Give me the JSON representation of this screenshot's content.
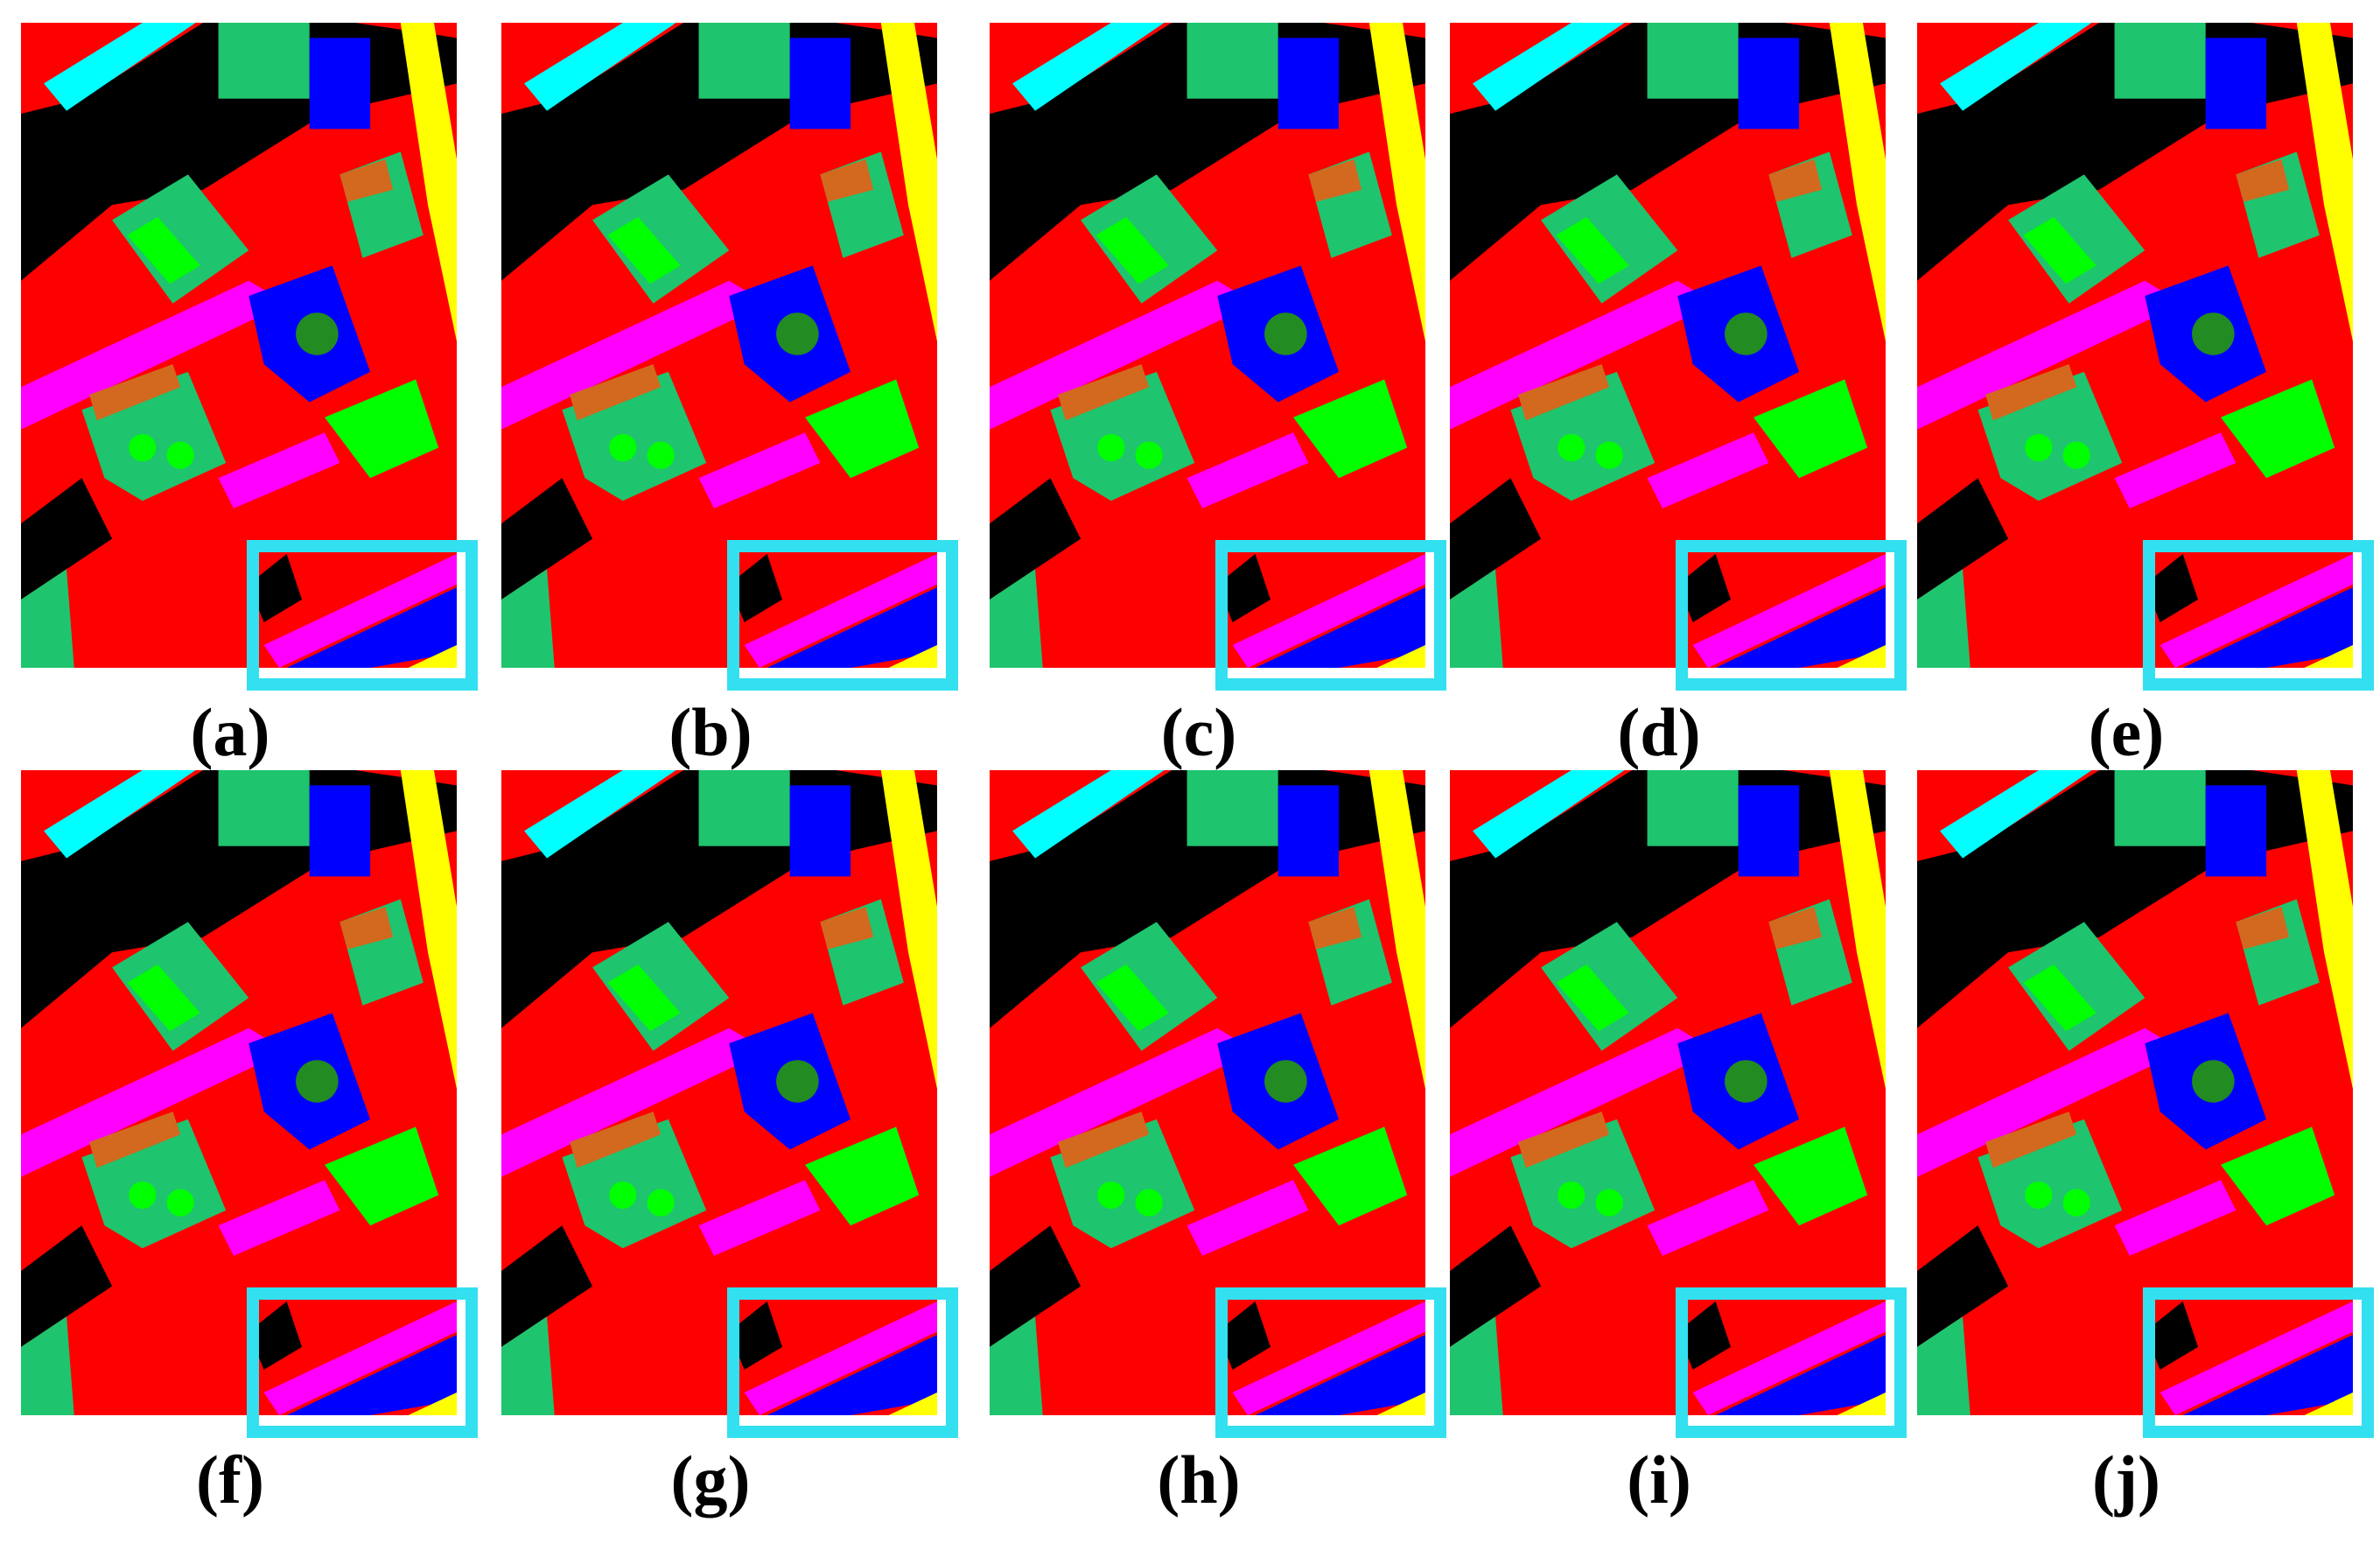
{
  "labels": [
    "(a)",
    "(b)",
    "(c)",
    "(d)",
    "(e)",
    "(f)",
    "(g)",
    "(h)",
    "(i)",
    "(j)"
  ]
}
